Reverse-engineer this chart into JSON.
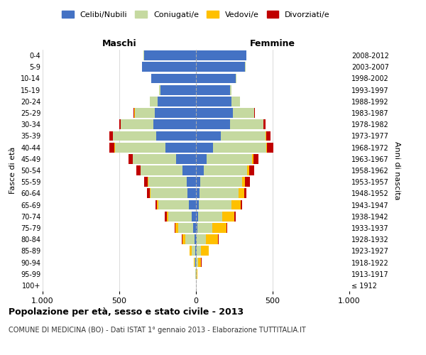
{
  "age_groups": [
    "100+",
    "95-99",
    "90-94",
    "85-89",
    "80-84",
    "75-79",
    "70-74",
    "65-69",
    "60-64",
    "55-59",
    "50-54",
    "45-49",
    "40-44",
    "35-39",
    "30-34",
    "25-29",
    "20-24",
    "15-19",
    "10-14",
    "5-9",
    "0-4"
  ],
  "birth_years": [
    "≤ 1912",
    "1913-1917",
    "1918-1922",
    "1923-1927",
    "1928-1932",
    "1933-1937",
    "1938-1942",
    "1943-1947",
    "1948-1952",
    "1953-1957",
    "1958-1962",
    "1963-1967",
    "1968-1972",
    "1973-1977",
    "1978-1982",
    "1983-1987",
    "1988-1992",
    "1993-1997",
    "1998-2002",
    "2003-2007",
    "2008-2012"
  ],
  "males": {
    "celibi": [
      0,
      1,
      3,
      5,
      10,
      18,
      30,
      45,
      55,
      60,
      90,
      130,
      200,
      260,
      280,
      270,
      250,
      230,
      290,
      350,
      340
    ],
    "coniugati": [
      0,
      2,
      8,
      25,
      60,
      100,
      150,
      200,
      240,
      250,
      270,
      280,
      330,
      280,
      210,
      130,
      50,
      10,
      3,
      2,
      1
    ],
    "vedovi": [
      0,
      1,
      4,
      10,
      20,
      15,
      12,
      10,
      8,
      5,
      3,
      2,
      2,
      1,
      1,
      1,
      0,
      0,
      0,
      0,
      0
    ],
    "divorziati": [
      0,
      0,
      1,
      1,
      2,
      5,
      10,
      10,
      15,
      25,
      25,
      30,
      35,
      25,
      10,
      5,
      2,
      0,
      0,
      0,
      0
    ]
  },
  "females": {
    "nubili": [
      0,
      0,
      2,
      3,
      5,
      8,
      15,
      20,
      25,
      30,
      50,
      70,
      110,
      160,
      220,
      240,
      230,
      220,
      260,
      320,
      330
    ],
    "coniugate": [
      0,
      3,
      12,
      30,
      60,
      100,
      155,
      210,
      255,
      270,
      285,
      295,
      350,
      295,
      220,
      140,
      55,
      12,
      4,
      2,
      1
    ],
    "vedove": [
      1,
      5,
      20,
      50,
      80,
      90,
      80,
      60,
      35,
      20,
      10,
      8,
      5,
      3,
      2,
      1,
      0,
      0,
      0,
      0,
      0
    ],
    "divorziate": [
      0,
      0,
      1,
      2,
      3,
      5,
      8,
      10,
      15,
      30,
      35,
      35,
      40,
      30,
      12,
      5,
      2,
      0,
      0,
      0,
      0
    ]
  },
  "colors": {
    "celibi": "#4472c4",
    "coniugati": "#c5d9a0",
    "vedovi": "#ffc000",
    "divorziati": "#c00000"
  },
  "legend_labels": [
    "Celibi/Nubili",
    "Coniugati/e",
    "Vedovi/e",
    "Divorziati/e"
  ],
  "xlim": 1000,
  "title": "Popolazione per età, sesso e stato civile - 2013",
  "subtitle": "COMUNE DI MEDICINA (BO) - Dati ISTAT 1° gennaio 2013 - Elaborazione TUTTITALIA.IT",
  "xlabel_left": "Maschi",
  "xlabel_right": "Femmine",
  "ylabel_left": "Fasce di età",
  "ylabel_right": "Anni di nascita",
  "bg_color": "#ffffff",
  "grid_color": "#cccccc"
}
